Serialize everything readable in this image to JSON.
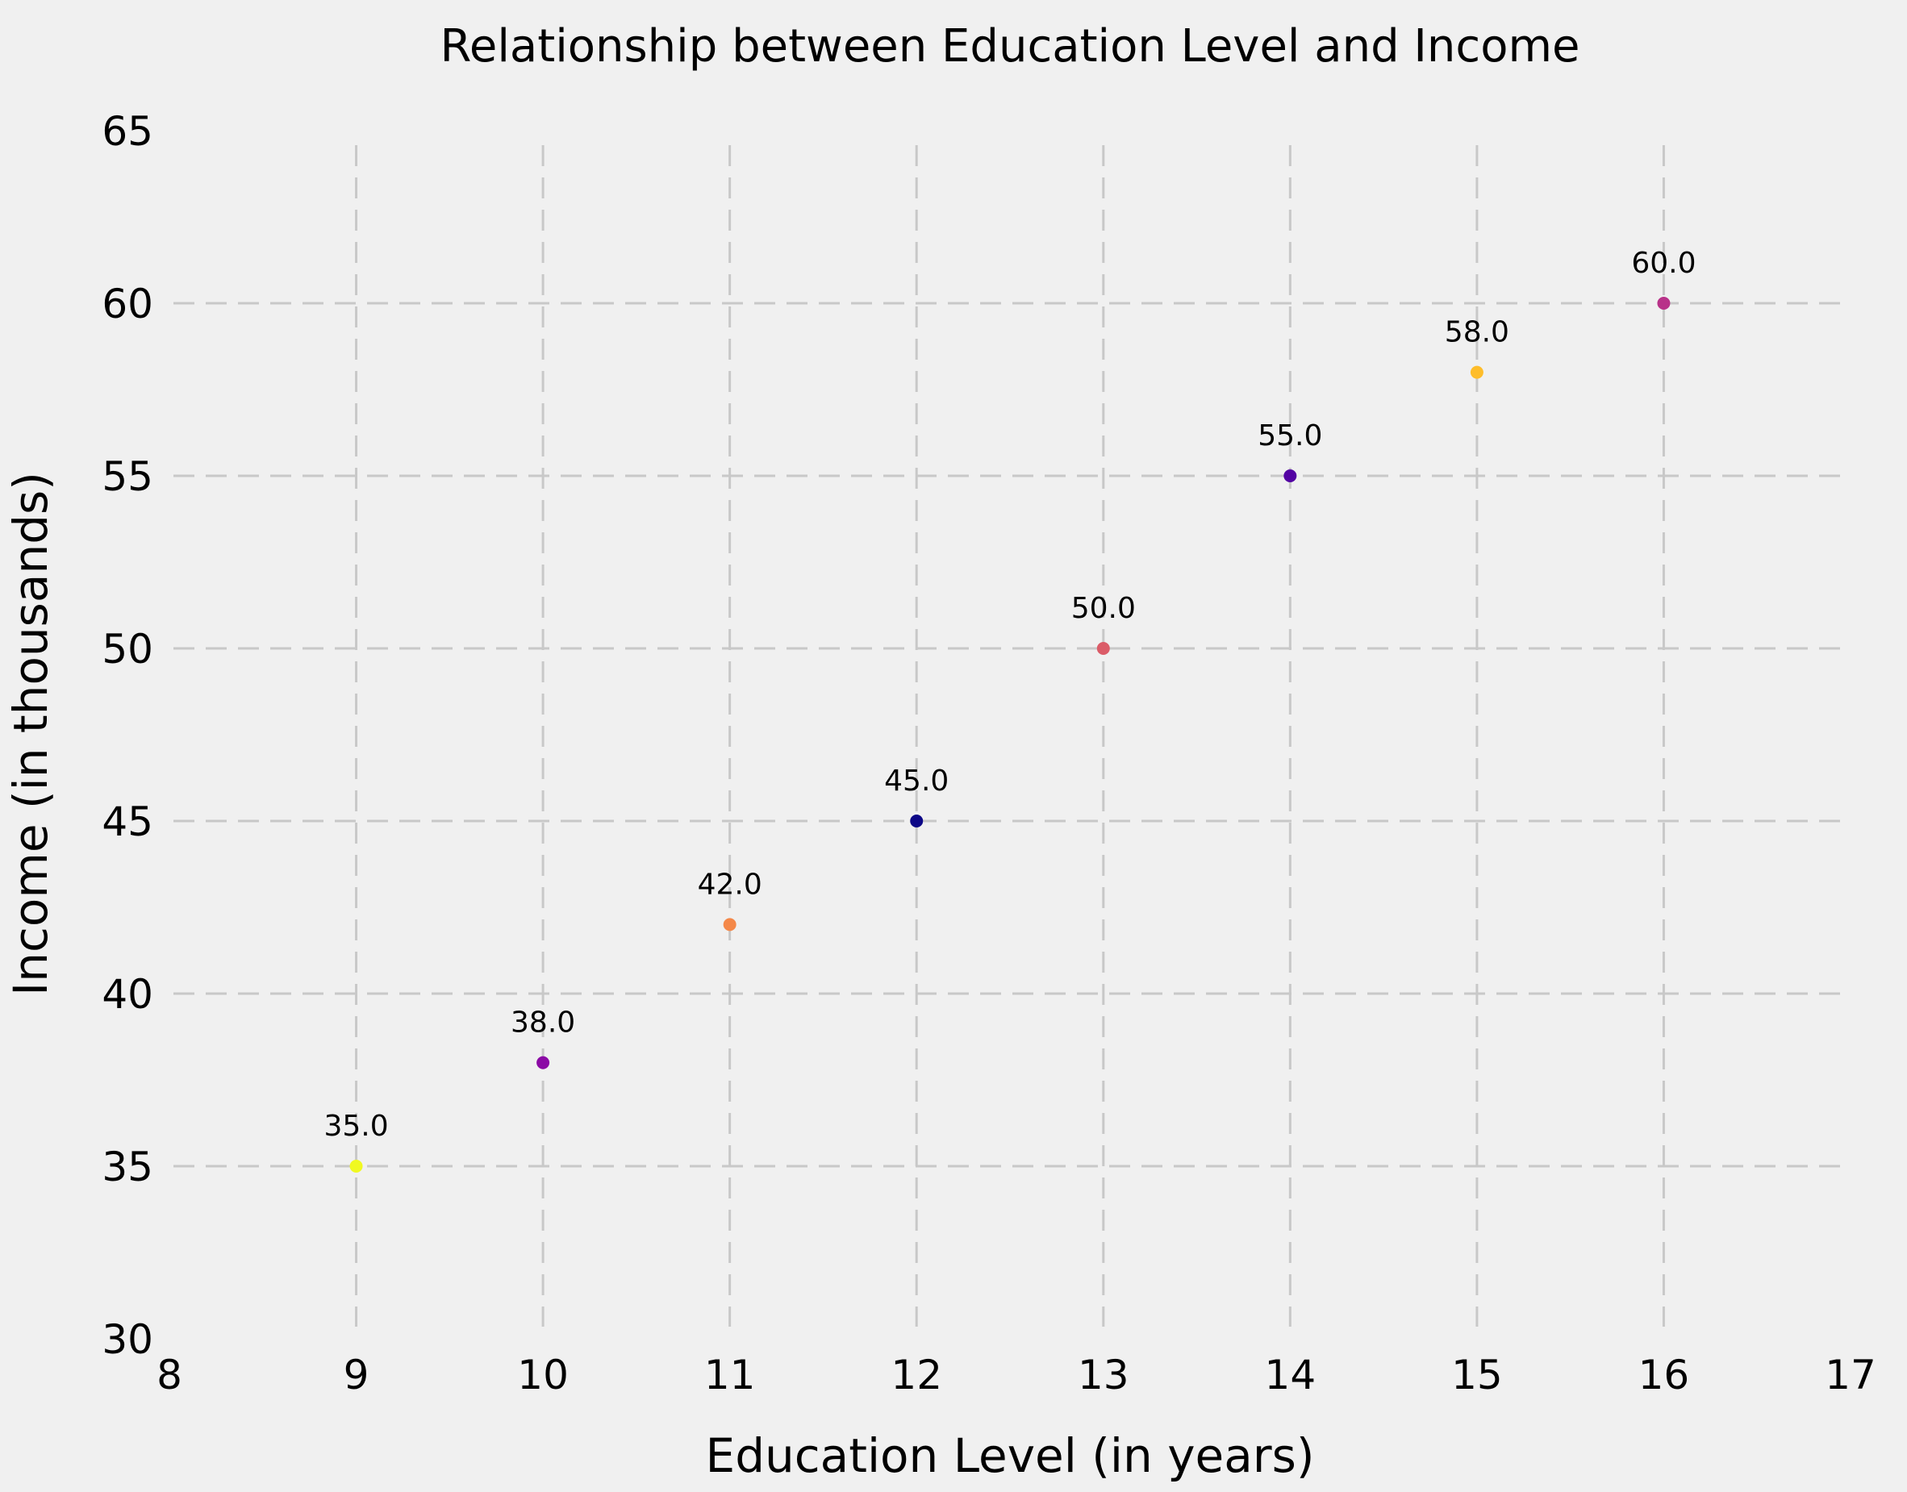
{
  "chart_data": {
    "type": "scatter",
    "title": "Relationship between Education Level and Income",
    "xlabel": "Education Level (in years)",
    "ylabel": "Income (in thousands)",
    "xlim": [
      8,
      17
    ],
    "ylim": [
      30,
      65
    ],
    "xticks": [
      8,
      9,
      10,
      11,
      12,
      13,
      14,
      15,
      16,
      17
    ],
    "yticks": [
      30,
      35,
      40,
      45,
      50,
      55,
      60,
      65
    ],
    "grid": true,
    "background": "#f0f0f0",
    "grid_color": "#c8c8c8",
    "points": [
      {
        "x": 9,
        "y": 35,
        "label": "35.0",
        "color": "#f0f921"
      },
      {
        "x": 10,
        "y": 38,
        "label": "38.0",
        "color": "#8b0aa5"
      },
      {
        "x": 11,
        "y": 42,
        "label": "42.0",
        "color": "#f48849"
      },
      {
        "x": 12,
        "y": 45,
        "label": "45.0",
        "color": "#0d0887"
      },
      {
        "x": 13,
        "y": 50,
        "label": "50.0",
        "color": "#db5c68"
      },
      {
        "x": 14,
        "y": 55,
        "label": "55.0",
        "color": "#5302a3"
      },
      {
        "x": 15,
        "y": 58,
        "label": "58.0",
        "color": "#febd2a"
      },
      {
        "x": 16,
        "y": 60,
        "label": "60.0",
        "color": "#b83289"
      }
    ]
  }
}
